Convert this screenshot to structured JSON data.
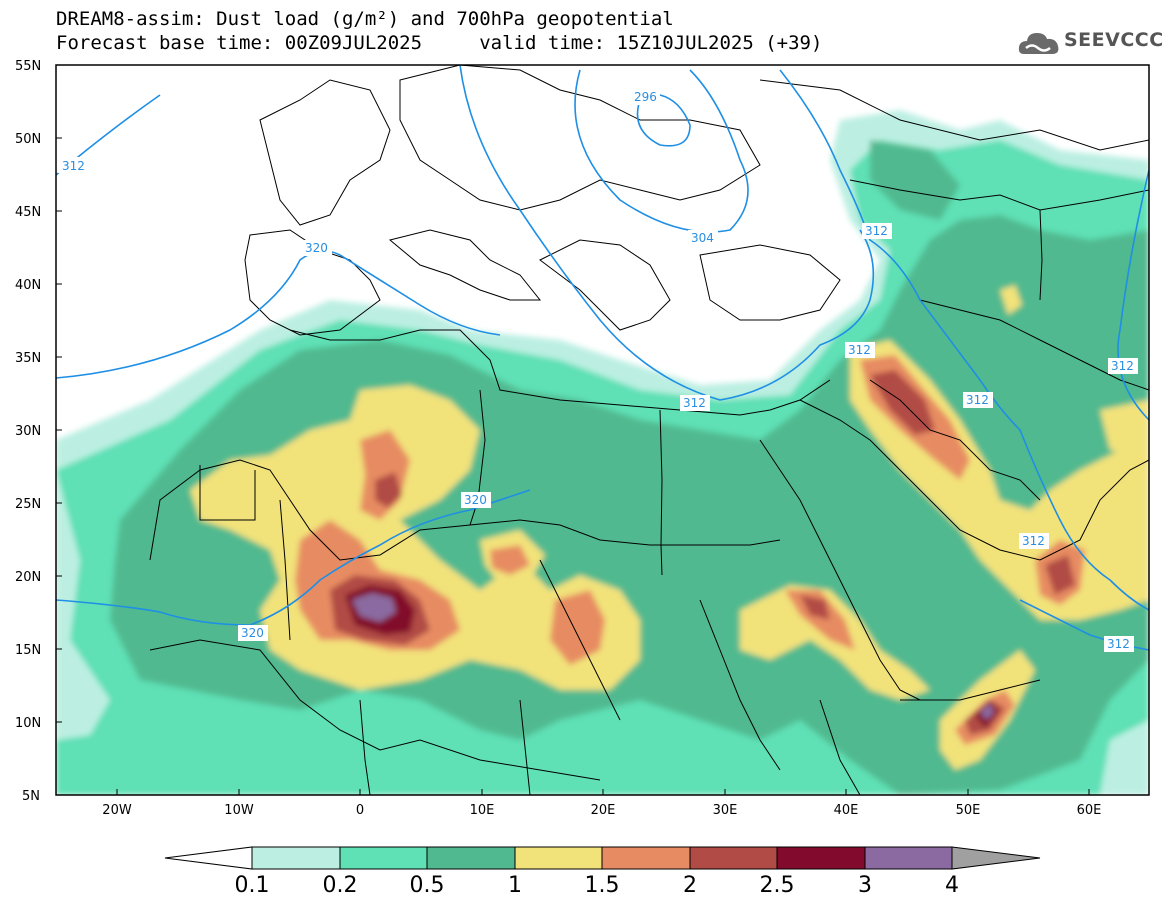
{
  "title": {
    "line1": "DREAM8-assim: Dust load (g/m²) and 700hPa geopotential",
    "line2": "Forecast base time: 00Z09JUL2025     valid time: 15Z10JUL2025 (+39)"
  },
  "logo": {
    "text": "SEEVCCC",
    "icon": "cloud-icon"
  },
  "map": {
    "lat_labels": [
      "55N",
      "50N",
      "45N",
      "40N",
      "35N",
      "30N",
      "25N",
      "20N",
      "15N",
      "10N",
      "5N"
    ],
    "lon_labels": [
      "20W",
      "10W",
      "0",
      "10E",
      "20E",
      "30E",
      "40E",
      "50E",
      "60E"
    ],
    "contour_labels": [
      "312",
      "320",
      "296",
      "304",
      "312",
      "312",
      "312",
      "312",
      "320",
      "312",
      "312",
      "320",
      "312"
    ]
  },
  "colorbar": {
    "labels": [
      "0.1",
      "0.2",
      "0.5",
      "1",
      "1.5",
      "2",
      "2.5",
      "3",
      "4"
    ],
    "colors": {
      "c0": "#bcefe2",
      "c1": "#5fe0b5",
      "c2": "#51b98f",
      "c3": "#f2e27a",
      "c4": "#e78c62",
      "c5": "#b14b45",
      "c6": "#820a2c",
      "c7": "#8a6aa0",
      "c8": "#a0a0a0"
    }
  }
}
